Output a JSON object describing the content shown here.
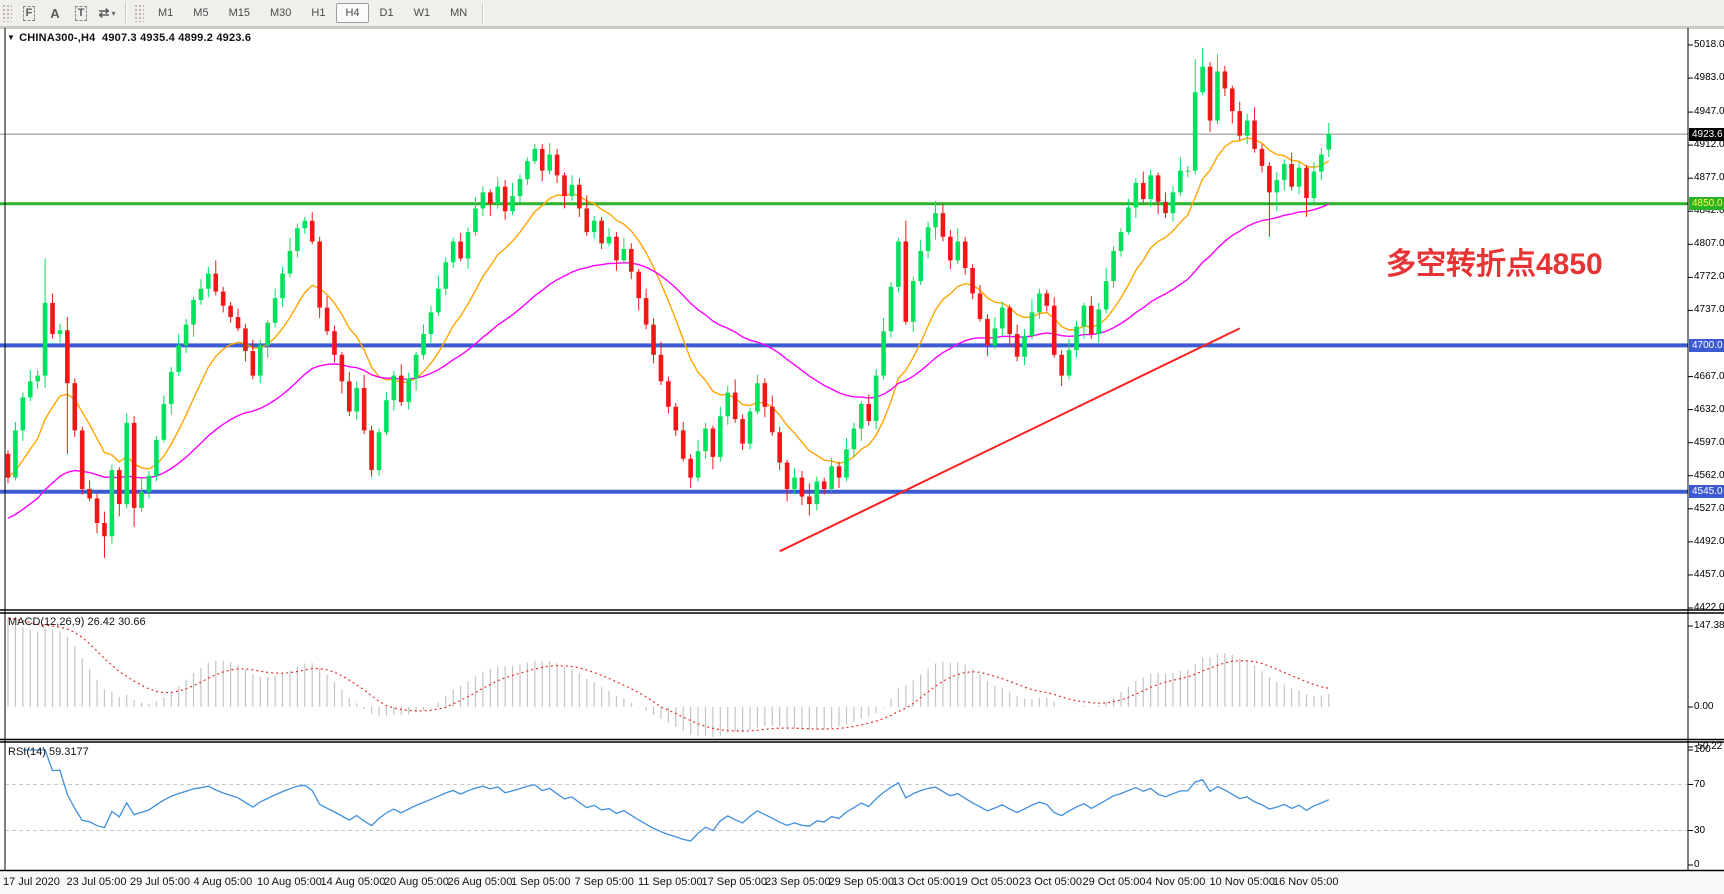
{
  "toolbar": {
    "icons": [
      {
        "name": "dotted-box-f-icon",
        "glyph": "F",
        "dashed": true
      },
      {
        "name": "label-a-icon",
        "glyph": "A",
        "dashed": false
      },
      {
        "name": "text-box-t-icon",
        "glyph": "T",
        "dashed": true
      },
      {
        "name": "arrow-style-icon",
        "glyph": "⇄",
        "dashed": false,
        "caret": "▾"
      }
    ],
    "timeframes": [
      "M1",
      "M5",
      "M15",
      "M30",
      "H1",
      "H4",
      "D1",
      "W1",
      "MN"
    ],
    "active_timeframe": "H4"
  },
  "header": {
    "dropdown_glyph": "▼",
    "title": "CHINA300-,H4",
    "ohlc": "4907.3 4935.4 4899.2 4923.6"
  },
  "annotation": {
    "text": "多空转折点4850",
    "color": "#e63333"
  },
  "indicators": {
    "macd": {
      "label": "MACD(12,26,9)",
      "values": "26.42 30.66",
      "scale_labels": [
        "147.38",
        "0.00",
        "-50.22"
      ]
    },
    "rsi": {
      "label": "RSI(14)",
      "value": "59.3177",
      "scale_labels": [
        "100",
        "70",
        "30",
        "0"
      ]
    }
  },
  "chart_data": {
    "type": "candlestick",
    "symbol": "CHINA300-",
    "timeframe": "H4",
    "title": "CHINA300-,H4",
    "last_ohlc": {
      "open": 4907.3,
      "high": 4935.4,
      "low": 4899.2,
      "close": 4923.6
    },
    "y_range": [
      4422.0,
      5018.0
    ],
    "price_scale_ticks": [
      "5018.0",
      "4983.0",
      "4947.0",
      "4912.0",
      "4877.0",
      "4842.0",
      "4807.0",
      "4772.0",
      "4737.0",
      "4667.0",
      "4632.0",
      "4597.0",
      "4562.0",
      "4527.0",
      "4492.0",
      "4457.0",
      "4422.0"
    ],
    "badges": [
      {
        "label": "4923.6",
        "price": 4923.6,
        "bg": "#000000",
        "fg": "#ffffff"
      },
      {
        "label": "4850.0",
        "price": 4850,
        "bg": "#2ab32a",
        "fg": "#ffff3d"
      },
      {
        "label": "4700.0",
        "price": 4700,
        "bg": "#3c5ad2",
        "fg": "#ffffff"
      },
      {
        "label": "4545.0",
        "price": 4545,
        "bg": "#3c5ad2",
        "fg": "#ffffff"
      }
    ],
    "levels": [
      {
        "price": 4850,
        "color": "#2ab32a",
        "width": 3
      },
      {
        "price": 4700,
        "color": "#3c5ad2",
        "width": 4
      },
      {
        "price": 4545,
        "color": "#3c5ad2",
        "width": 4
      }
    ],
    "current_price": 4923.6,
    "trendline": {
      "from_index": 104,
      "from_price": 4482,
      "to_index": 166,
      "to_price": 4718
    },
    "x_axis_labels": [
      "17 Jul 2020",
      "23 Jul 05:00",
      "29 Jul 05:00",
      "4 Aug 05:00",
      "10 Aug 05:00",
      "14 Aug 05:00",
      "20 Aug 05:00",
      "26 Aug 05:00",
      "1 Sep 05:00",
      "7 Sep 05:00",
      "11 Sep 05:00",
      "17 Sep 05:00",
      "23 Sep 05:00",
      "29 Sep 05:00",
      "13 Oct 05:00",
      "19 Oct 05:00",
      "23 Oct 05:00",
      "29 Oct 05:00",
      "4 Nov 05:00",
      "10 Nov 05:00",
      "16 Nov 05:00"
    ],
    "colors": {
      "up": "#00e25e",
      "down": "#f21616",
      "ma_fast": "#ffa500",
      "ma_slow": "#ff00ff",
      "trend": "#ff2020",
      "current": "#8a8a8a",
      "macd_hist": "#c4c4c4",
      "macd_signal": "#e23030",
      "rsi": "#3f8fdd",
      "rsi_levels": "#c9c9c9"
    },
    "candles": [
      [
        4585,
        4589,
        4554,
        4560
      ],
      [
        4560,
        4619,
        4557,
        4610
      ],
      [
        4610,
        4650,
        4599,
        4645
      ],
      [
        4645,
        4674,
        4641,
        4662
      ],
      [
        4662,
        4674,
        4654,
        4668
      ],
      [
        4668,
        4792,
        4655,
        4745
      ],
      [
        4745,
        4755,
        4707,
        4712
      ],
      [
        4712,
        4723,
        4703,
        4716
      ],
      [
        4716,
        4730,
        4585,
        4660
      ],
      [
        4660,
        4665,
        4603,
        4610
      ],
      [
        4610,
        4614,
        4542,
        4548
      ],
      [
        4548,
        4557,
        4535,
        4538
      ],
      [
        4538,
        4543,
        4501,
        4512
      ],
      [
        4512,
        4524,
        4475,
        4498
      ],
      [
        4498,
        4574,
        4490,
        4568
      ],
      [
        4568,
        4571,
        4519,
        4532
      ],
      [
        4532,
        4628,
        4527,
        4618
      ],
      [
        4618,
        4625,
        4508,
        4528
      ],
      [
        4528,
        4559,
        4524,
        4545
      ],
      [
        4545,
        4567,
        4538,
        4562
      ],
      [
        4562,
        4604,
        4556,
        4600
      ],
      [
        4600,
        4647,
        4597,
        4638
      ],
      [
        4638,
        4677,
        4627,
        4672
      ],
      [
        4672,
        4712,
        4668,
        4700
      ],
      [
        4700,
        4728,
        4692,
        4722
      ],
      [
        4722,
        4751,
        4709,
        4748
      ],
      [
        4748,
        4770,
        4743,
        4760
      ],
      [
        4760,
        4783,
        4751,
        4776
      ],
      [
        4776,
        4790,
        4753,
        4757
      ],
      [
        4757,
        4762,
        4735,
        4742
      ],
      [
        4742,
        4746,
        4724,
        4730
      ],
      [
        4730,
        4739,
        4715,
        4718
      ],
      [
        4718,
        4723,
        4683,
        4694
      ],
      [
        4694,
        4706,
        4664,
        4668
      ],
      [
        4668,
        4706,
        4660,
        4700
      ],
      [
        4700,
        4727,
        4687,
        4724
      ],
      [
        4724,
        4760,
        4719,
        4750
      ],
      [
        4750,
        4783,
        4741,
        4776
      ],
      [
        4776,
        4814,
        4772,
        4800
      ],
      [
        4800,
        4829,
        4793,
        4824
      ],
      [
        4824,
        4836,
        4818,
        4832
      ],
      [
        4832,
        4841,
        4807,
        4810
      ],
      [
        4810,
        4815,
        4729,
        4740
      ],
      [
        4740,
        4752,
        4711,
        4715
      ],
      [
        4715,
        4721,
        4682,
        4690
      ],
      [
        4690,
        4693,
        4649,
        4662
      ],
      [
        4662,
        4672,
        4625,
        4630
      ],
      [
        4630,
        4662,
        4621,
        4655
      ],
      [
        4655,
        4669,
        4606,
        4610
      ],
      [
        4610,
        4615,
        4561,
        4568
      ],
      [
        4568,
        4612,
        4562,
        4608
      ],
      [
        4608,
        4651,
        4605,
        4642
      ],
      [
        4642,
        4673,
        4631,
        4668
      ],
      [
        4668,
        4680,
        4636,
        4640
      ],
      [
        4640,
        4671,
        4632,
        4665
      ],
      [
        4665,
        4693,
        4652,
        4690
      ],
      [
        4690,
        4722,
        4685,
        4712
      ],
      [
        4712,
        4742,
        4703,
        4735
      ],
      [
        4735,
        4774,
        4731,
        4760
      ],
      [
        4760,
        4793,
        4753,
        4788
      ],
      [
        4788,
        4814,
        4782,
        4810
      ],
      [
        4810,
        4819,
        4789,
        4792
      ],
      [
        4792,
        4825,
        4781,
        4820
      ],
      [
        4820,
        4857,
        4816,
        4845
      ],
      [
        4845,
        4868,
        4837,
        4862
      ],
      [
        4862,
        4865,
        4837,
        4850
      ],
      [
        4850,
        4878,
        4845,
        4868
      ],
      [
        4868,
        4875,
        4833,
        4842
      ],
      [
        4842,
        4872,
        4838,
        4858
      ],
      [
        4858,
        4881,
        4851,
        4876
      ],
      [
        4876,
        4899,
        4870,
        4895
      ],
      [
        4895,
        4913,
        4892,
        4908
      ],
      [
        4908,
        4913,
        4874,
        4885
      ],
      [
        4885,
        4914,
        4881,
        4902
      ],
      [
        4902,
        4908,
        4872,
        4880
      ],
      [
        4880,
        4883,
        4845,
        4858
      ],
      [
        4858,
        4880,
        4853,
        4870
      ],
      [
        4870,
        4877,
        4836,
        4845
      ],
      [
        4845,
        4859,
        4816,
        4820
      ],
      [
        4820,
        4837,
        4813,
        4832
      ],
      [
        4832,
        4836,
        4802,
        4808
      ],
      [
        4808,
        4824,
        4805,
        4815
      ],
      [
        4815,
        4820,
        4779,
        4790
      ],
      [
        4790,
        4814,
        4786,
        4802
      ],
      [
        4802,
        4808,
        4770,
        4778
      ],
      [
        4778,
        4781,
        4737,
        4750
      ],
      [
        4750,
        4760,
        4717,
        4722
      ],
      [
        4722,
        4729,
        4681,
        4690
      ],
      [
        4690,
        4704,
        4658,
        4662
      ],
      [
        4662,
        4667,
        4628,
        4635
      ],
      [
        4635,
        4639,
        4604,
        4610
      ],
      [
        4610,
        4619,
        4577,
        4580
      ],
      [
        4580,
        4585,
        4549,
        4560
      ],
      [
        4560,
        4600,
        4556,
        4588
      ],
      [
        4588,
        4618,
        4580,
        4612
      ],
      [
        4612,
        4615,
        4569,
        4582
      ],
      [
        4582,
        4635,
        4577,
        4625
      ],
      [
        4625,
        4657,
        4616,
        4650
      ],
      [
        4650,
        4664,
        4618,
        4622
      ],
      [
        4622,
        4627,
        4589,
        4596
      ],
      [
        4596,
        4634,
        4590,
        4630
      ],
      [
        4630,
        4669,
        4627,
        4660
      ],
      [
        4660,
        4665,
        4624,
        4635
      ],
      [
        4635,
        4647,
        4604,
        4608
      ],
      [
        4608,
        4614,
        4568,
        4576
      ],
      [
        4576,
        4579,
        4535,
        4548
      ],
      [
        4548,
        4570,
        4543,
        4560
      ],
      [
        4560,
        4567,
        4531,
        4540
      ],
      [
        4540,
        4554,
        4520,
        4532
      ],
      [
        4532,
        4561,
        4525,
        4556
      ],
      [
        4556,
        4560,
        4542,
        4548
      ],
      [
        4548,
        4581,
        4545,
        4572
      ],
      [
        4572,
        4577,
        4549,
        4560
      ],
      [
        4560,
        4602,
        4556,
        4590
      ],
      [
        4590,
        4618,
        4582,
        4612
      ],
      [
        4612,
        4641,
        4599,
        4638
      ],
      [
        4638,
        4648,
        4615,
        4620
      ],
      [
        4620,
        4675,
        4611,
        4668
      ],
      [
        4668,
        4729,
        4664,
        4715
      ],
      [
        4715,
        4767,
        4708,
        4762
      ],
      [
        4762,
        4814,
        4756,
        4810
      ],
      [
        4810,
        4832,
        4722,
        4725
      ],
      [
        4725,
        4773,
        4714,
        4768
      ],
      [
        4768,
        4812,
        4764,
        4800
      ],
      [
        4800,
        4831,
        4792,
        4825
      ],
      [
        4825,
        4853,
        4812,
        4840
      ],
      [
        4840,
        4850,
        4810,
        4815
      ],
      [
        4815,
        4822,
        4781,
        4790
      ],
      [
        4790,
        4824,
        4786,
        4810
      ],
      [
        4810,
        4815,
        4775,
        4782
      ],
      [
        4782,
        4786,
        4749,
        4755
      ],
      [
        4755,
        4764,
        4725,
        4728
      ],
      [
        4728,
        4733,
        4689,
        4700
      ],
      [
        4700,
        4730,
        4696,
        4718
      ],
      [
        4718,
        4746,
        4710,
        4740
      ],
      [
        4740,
        4743,
        4699,
        4712
      ],
      [
        4712,
        4722,
        4683,
        4688
      ],
      [
        4688,
        4717,
        4679,
        4710
      ],
      [
        4710,
        4749,
        4706,
        4735
      ],
      [
        4735,
        4760,
        4728,
        4755
      ],
      [
        4755,
        4759,
        4736,
        4742
      ],
      [
        4742,
        4751,
        4687,
        4690
      ],
      [
        4690,
        4695,
        4657,
        4668
      ],
      [
        4668,
        4707,
        4664,
        4695
      ],
      [
        4695,
        4726,
        4687,
        4720
      ],
      [
        4720,
        4745,
        4707,
        4742
      ],
      [
        4742,
        4752,
        4707,
        4712
      ],
      [
        4712,
        4745,
        4703,
        4738
      ],
      [
        4738,
        4782,
        4734,
        4768
      ],
      [
        4768,
        4805,
        4761,
        4800
      ],
      [
        4800,
        4824,
        4794,
        4820
      ],
      [
        4820,
        4855,
        4817,
        4846
      ],
      [
        4846,
        4877,
        4835,
        4872
      ],
      [
        4872,
        4884,
        4851,
        4855
      ],
      [
        4855,
        4886,
        4847,
        4880
      ],
      [
        4880,
        4883,
        4839,
        4852
      ],
      [
        4852,
        4862,
        4835,
        4840
      ],
      [
        4840,
        4869,
        4831,
        4862
      ],
      [
        4862,
        4899,
        4858,
        4885
      ],
      [
        4885,
        4890,
        4878,
        4885
      ],
      [
        4885,
        5003,
        4881,
        4968
      ],
      [
        4968,
        5015,
        4965,
        4995
      ],
      [
        4995,
        5000,
        4926,
        4938
      ],
      [
        4938,
        5008,
        4934,
        4990
      ],
      [
        4990,
        4996,
        4964,
        4972
      ],
      [
        4972,
        4975,
        4935,
        4948
      ],
      [
        4948,
        4958,
        4917,
        4922
      ],
      [
        4922,
        4945,
        4913,
        4938
      ],
      [
        4938,
        4952,
        4904,
        4908
      ],
      [
        4908,
        4913,
        4883,
        4890
      ],
      [
        4890,
        4894,
        4815,
        4862
      ],
      [
        4862,
        4884,
        4842,
        4875
      ],
      [
        4875,
        4897,
        4864,
        4892
      ],
      [
        4892,
        4904,
        4864,
        4868
      ],
      [
        4868,
        4894,
        4860,
        4888
      ],
      [
        4888,
        4891,
        4836,
        4856
      ],
      [
        4856,
        4894,
        4851,
        4884
      ],
      [
        4884,
        4909,
        4875,
        4902
      ],
      [
        4907.3,
        4935.4,
        4899.2,
        4923.6
      ]
    ]
  }
}
